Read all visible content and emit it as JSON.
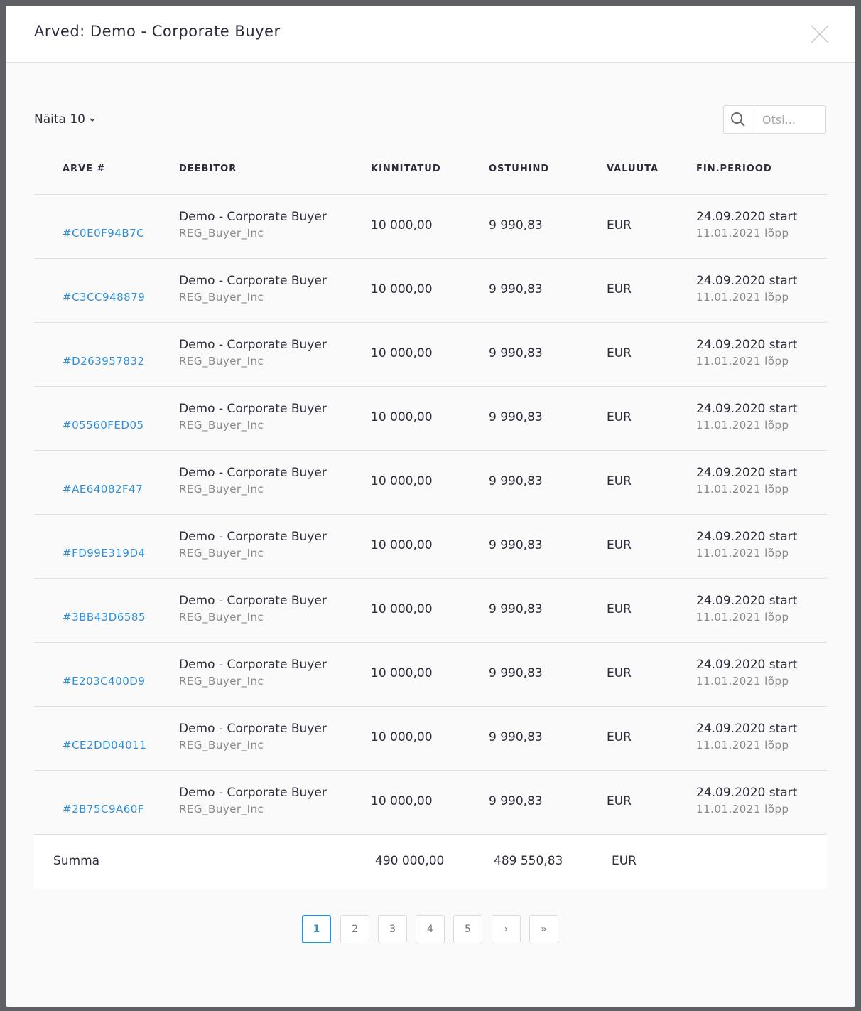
{
  "modal": {
    "title": "Arved: Demo - Corporate Buyer"
  },
  "controls": {
    "page_size": "Näita 10",
    "search_placeholder": "Otsi..."
  },
  "table": {
    "columns": [
      "ARVE #",
      "DEEBITOR",
      "KINNITATUD",
      "OSTUHIND",
      "VALUUTA",
      "FIN.PERIOOD"
    ],
    "rows": [
      [
        "#C0E0F94B7C",
        "Demo - Corporate Buyer",
        "REG_Buyer_Inc",
        "10 000,00",
        "9 990,83",
        "EUR",
        "24.09.2020 start",
        "11.01.2021 lõpp"
      ],
      [
        "#C3CC948879",
        "Demo - Corporate Buyer",
        "REG_Buyer_Inc",
        "10 000,00",
        "9 990,83",
        "EUR",
        "24.09.2020 start",
        "11.01.2021 lõpp"
      ],
      [
        "#D263957832",
        "Demo - Corporate Buyer",
        "REG_Buyer_Inc",
        "10 000,00",
        "9 990,83",
        "EUR",
        "24.09.2020 start",
        "11.01.2021 lõpp"
      ],
      [
        "#05560FED05",
        "Demo - Corporate Buyer",
        "REG_Buyer_Inc",
        "10 000,00",
        "9 990,83",
        "EUR",
        "24.09.2020 start",
        "11.01.2021 lõpp"
      ],
      [
        "#AE64082F47",
        "Demo - Corporate Buyer",
        "REG_Buyer_Inc",
        "10 000,00",
        "9 990,83",
        "EUR",
        "24.09.2020 start",
        "11.01.2021 lõpp"
      ],
      [
        "#FD99E319D4",
        "Demo - Corporate Buyer",
        "REG_Buyer_Inc",
        "10 000,00",
        "9 990,83",
        "EUR",
        "24.09.2020 start",
        "11.01.2021 lõpp"
      ],
      [
        "#3BB43D6585",
        "Demo - Corporate Buyer",
        "REG_Buyer_Inc",
        "10 000,00",
        "9 990,83",
        "EUR",
        "24.09.2020 start",
        "11.01.2021 lõpp"
      ],
      [
        "#E203C400D9",
        "Demo - Corporate Buyer",
        "REG_Buyer_Inc",
        "10 000,00",
        "9 990,83",
        "EUR",
        "24.09.2020 start",
        "11.01.2021 lõpp"
      ],
      [
        "#CE2DD04011",
        "Demo - Corporate Buyer",
        "REG_Buyer_Inc",
        "10 000,00",
        "9 990,83",
        "EUR",
        "24.09.2020 start",
        "11.01.2021 lõpp"
      ],
      [
        "#2B75C9A60F",
        "Demo - Corporate Buyer",
        "REG_Buyer_Inc",
        "10 000,00",
        "9 990,83",
        "EUR",
        "24.09.2020 start",
        "11.01.2021 lõpp"
      ]
    ],
    "summary": {
      "label": "Summa",
      "confirmed": "490 000,00",
      "price": "489 550,83",
      "currency": "EUR"
    }
  },
  "pagination": {
    "pages": [
      "1",
      "2",
      "3",
      "4",
      "5",
      "›",
      "»"
    ],
    "active": "1"
  }
}
